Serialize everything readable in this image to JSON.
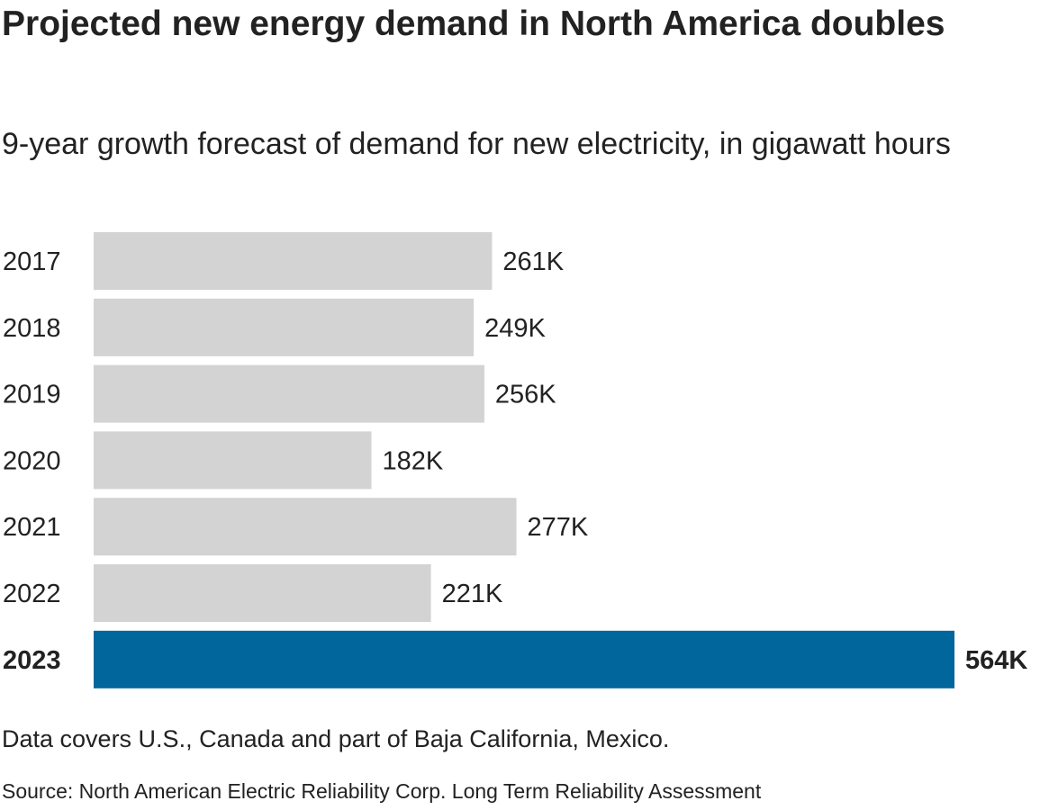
{
  "title": "Projected new energy demand in North America doubles",
  "subtitle": "9-year growth forecast of demand for new electricity, in gigawatt hours",
  "note": "Data covers U.S., Canada and part of Baja California, Mexico.",
  "source": "Source: North American Electric Reliability Corp. Long Term Reliability Assessment",
  "chart_data": {
    "type": "bar",
    "orientation": "horizontal",
    "categories": [
      "2017",
      "2018",
      "2019",
      "2020",
      "2021",
      "2022",
      "2023"
    ],
    "values": [
      261,
      249,
      256,
      182,
      277,
      221,
      564
    ],
    "labels": [
      "261K",
      "249K",
      "256K",
      "182K",
      "277K",
      "221K",
      "564K"
    ],
    "highlight": "2023",
    "colors": {
      "default": "#d3d3d3",
      "highlight": "#00669b"
    },
    "grid": false
  }
}
